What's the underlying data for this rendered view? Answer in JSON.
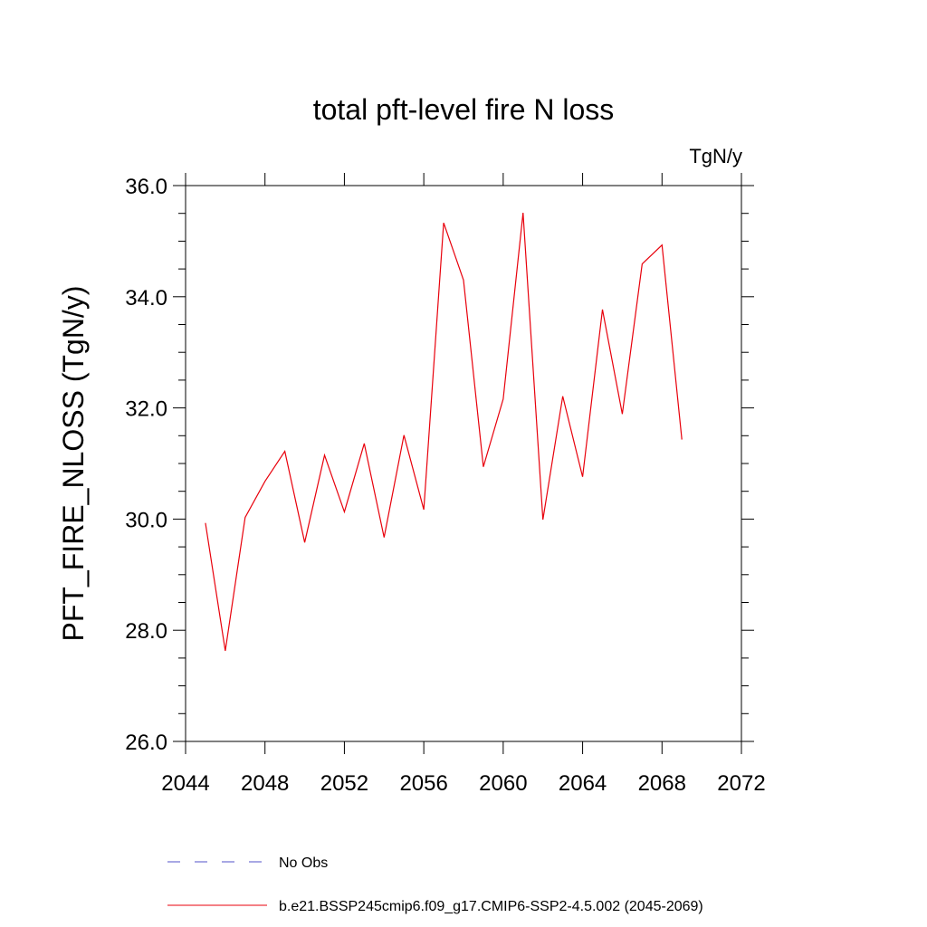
{
  "chart_data": {
    "type": "line",
    "title": "total pft-level fire N loss",
    "units_label": "TgN/y",
    "ylabel": "PFT_FIRE_NLOSS  (TgN/y)",
    "xlabel": "",
    "xlim": [
      2044,
      2072
    ],
    "ylim": [
      26.0,
      36.0
    ],
    "x_ticks": [
      2044,
      2048,
      2052,
      2056,
      2060,
      2064,
      2068,
      2072
    ],
    "x_tick_labels": [
      "2044",
      "2048",
      "2052",
      "2056",
      "2060",
      "2064",
      "2068",
      "2072"
    ],
    "y_ticks": [
      26,
      28,
      30,
      32,
      34,
      36
    ],
    "y_tick_labels": [
      "26.0",
      "28.0",
      "30.0",
      "32.0",
      "34.0",
      "36.0"
    ],
    "grid": false,
    "legend_placement": "bottom",
    "series": [
      {
        "name": "b.e21.BSSP245cmip6.f09_g17.CMIP6-SSP2-4.5.002 (2045-2069)",
        "color": "#e8000b",
        "style": "solid",
        "x": [
          2045,
          2046,
          2047,
          2048,
          2049,
          2050,
          2051,
          2052,
          2053,
          2054,
          2055,
          2056,
          2057,
          2058,
          2059,
          2060,
          2061,
          2062,
          2063,
          2064,
          2065,
          2066,
          2067,
          2068,
          2069
        ],
        "y": [
          29.93,
          27.63,
          30.03,
          30.68,
          31.22,
          29.58,
          31.15,
          30.13,
          31.36,
          29.67,
          31.51,
          30.17,
          35.33,
          34.3,
          30.94,
          32.16,
          35.51,
          29.99,
          32.21,
          30.76,
          33.77,
          31.89,
          34.59,
          34.93,
          31.43
        ]
      }
    ],
    "legend": [
      {
        "label": "No Obs",
        "color": "#5050c8",
        "style": "dashed"
      },
      {
        "label": "b.e21.BSSP245cmip6.f09_g17.CMIP6-SSP2-4.5.002 (2045-2069)",
        "color": "#e8000b",
        "style": "solid"
      }
    ]
  }
}
